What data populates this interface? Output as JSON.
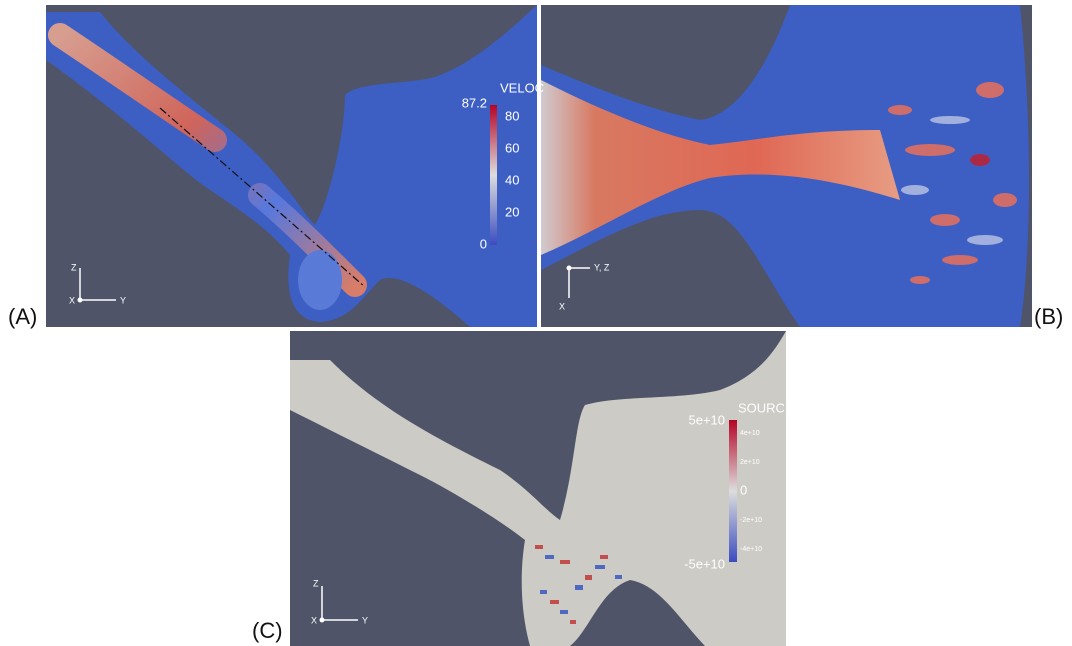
{
  "panels": [
    {
      "label": "(A)",
      "axes": {
        "vertical": "Z",
        "horizontal": "Y",
        "origin": "X"
      },
      "colorbar": {
        "title": "VELOC",
        "max_label": "87.2",
        "ticks": [
          "80",
          "60",
          "40",
          "20"
        ],
        "min_label": "0"
      }
    },
    {
      "label": "(B)",
      "axes": {
        "horizontal": "Y, Z",
        "vertical": "X"
      }
    },
    {
      "label": "(C)",
      "axes": {
        "vertical": "Z",
        "horizontal": "Y",
        "origin": "X"
      },
      "colorbar": {
        "title": "SOURCE",
        "max_label": "5e+10",
        "ticks": [
          "4e+10",
          "2e+10",
          "0",
          "-2e+10",
          "-4e+10"
        ],
        "min_label": "-5e+10"
      }
    }
  ]
}
